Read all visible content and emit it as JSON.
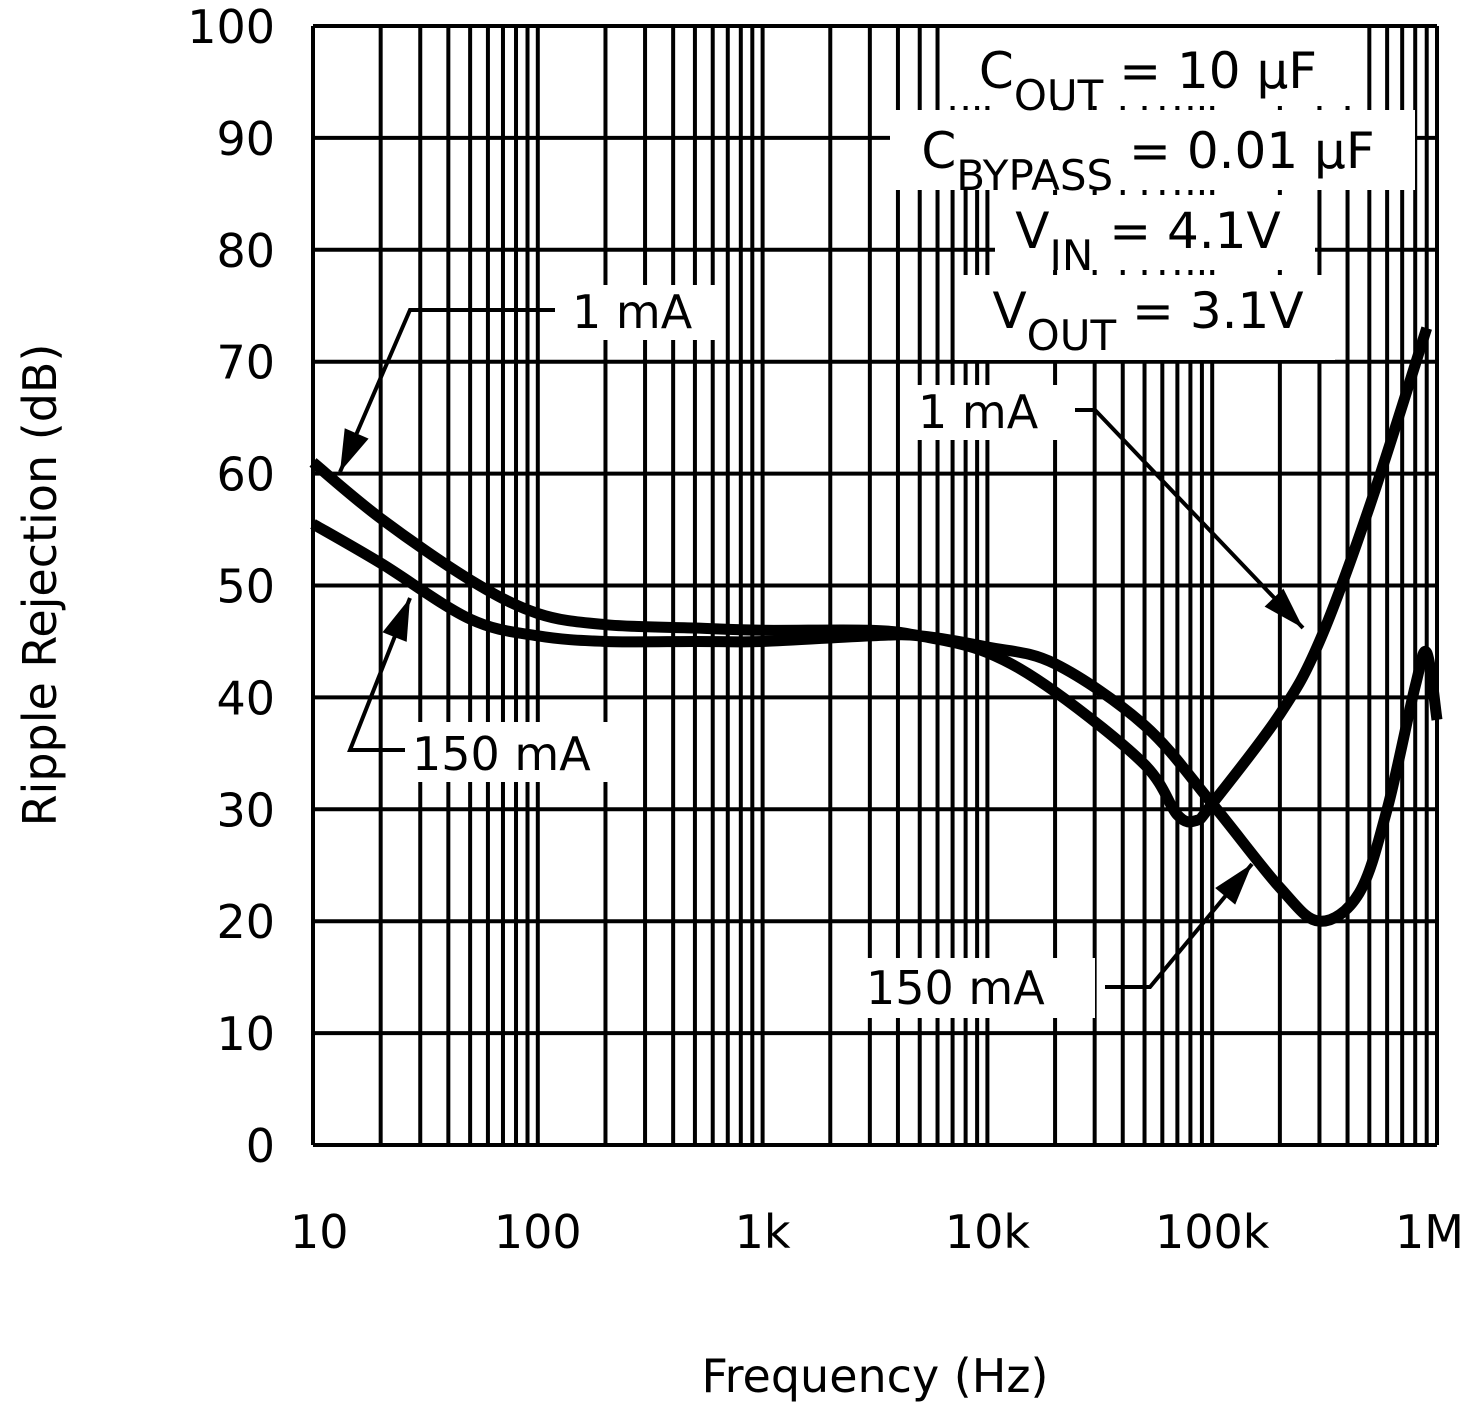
{
  "chart_data": {
    "type": "line",
    "title": "",
    "xlabel": "Frequency (Hz)",
    "ylabel": "Ripple Rejection (dB)",
    "xscale": "log",
    "xlim": [
      10,
      1000000
    ],
    "ylim": [
      0,
      100
    ],
    "grid": true,
    "x_tick_labels": [
      "10",
      "100",
      "1k",
      "10k",
      "100k",
      "1M"
    ],
    "x_tick_values": [
      10,
      100,
      1000,
      10000,
      100000,
      1000000
    ],
    "y_tick_labels": [
      "0",
      "10",
      "20",
      "30",
      "40",
      "50",
      "60",
      "70",
      "80",
      "90",
      "100"
    ],
    "series": [
      {
        "name": "1 mA",
        "x": [
          10,
          20,
          50,
          100,
          200,
          500,
          1000,
          3000,
          5000,
          10000,
          20000,
          50000,
          70000,
          85000,
          100000,
          200000,
          300000,
          500000,
          900000
        ],
        "y": [
          61,
          56,
          50.5,
          47.5,
          46.5,
          46.2,
          46,
          46,
          45.5,
          44,
          40.5,
          34,
          29.5,
          29,
          30.5,
          38.5,
          45,
          57,
          73
        ]
      },
      {
        "name": "150 mA",
        "x": [
          10,
          20,
          50,
          100,
          200,
          500,
          1000,
          3000,
          5000,
          10000,
          20000,
          50000,
          100000,
          200000,
          300000,
          450000,
          600000,
          800000,
          900000,
          1000000
        ],
        "y": [
          55.5,
          52,
          47,
          45.5,
          45,
          45,
          45,
          45.5,
          45.5,
          44.5,
          43,
          37.5,
          30.5,
          23,
          20,
          22.5,
          30,
          41,
          44,
          38
        ]
      }
    ],
    "annotations": {
      "conditions": [
        {
          "main": "C",
          "sub": "OUT",
          "rest": " = 10 µF"
        },
        {
          "main": "C",
          "sub": "BYPASS",
          "rest": " = 0.01 µF"
        },
        {
          "main": "V",
          "sub": "IN",
          "rest": " = 4.1V"
        },
        {
          "main": "V",
          "sub": "OUT",
          "rest": " = 3.1V"
        }
      ],
      "labels": [
        "1 mA",
        "150 mA",
        "1 mA",
        "150 mA"
      ]
    }
  }
}
